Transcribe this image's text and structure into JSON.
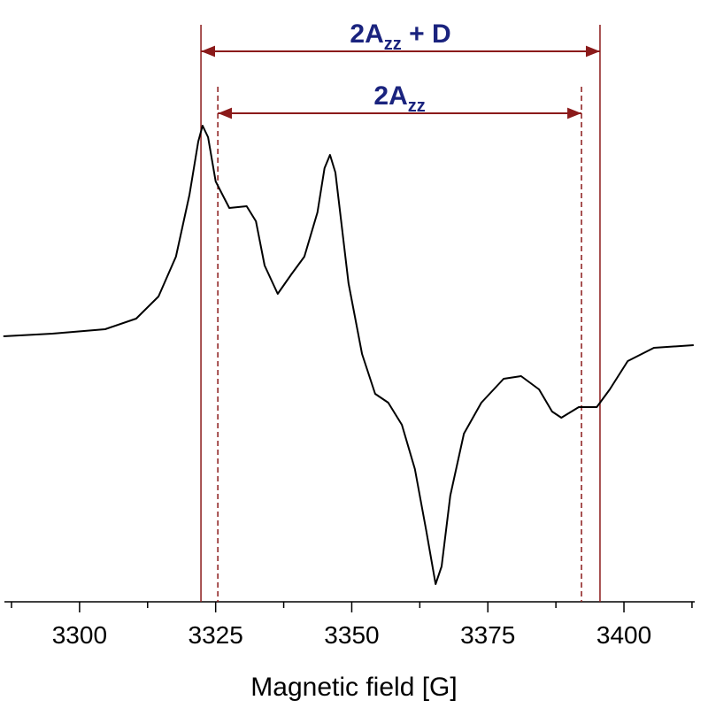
{
  "chart_data": {
    "type": "line",
    "x_label": "Magnetic field [G]",
    "xlim": [
      3286.2,
      3413.0
    ],
    "xticks": [
      3300,
      3325,
      3350,
      3375,
      3400
    ],
    "x_minor_ticks": [
      3287.5,
      3312.5,
      3337.5,
      3362.5,
      3387.5,
      3412.5
    ],
    "ylim": [
      -3.0,
      3.8
    ],
    "series": [
      {
        "color": "#000000",
        "x": [
          3286,
          3295,
          3304.7,
          3310.4,
          3314.5,
          3317.7,
          3320.2,
          3321.8,
          3322.6,
          3323.6,
          3325,
          3327.5,
          3330.7,
          3332.4,
          3334,
          3336.4,
          3338.9,
          3341.3,
          3343.7,
          3345,
          3346,
          3347,
          3349.4,
          3351.9,
          3354.3,
          3356.7,
          3359.2,
          3361.6,
          3363.7,
          3365.4,
          3366.5,
          3368.1,
          3370.6,
          3373.8,
          3377.9,
          3381.1,
          3384.4,
          3386.8,
          3388.5,
          3391.7,
          3395,
          3397.4,
          3400.7,
          3405.5,
          3412.8
        ],
        "values": [
          0,
          0.03,
          0.08,
          0.2,
          0.45,
          0.9,
          1.6,
          2.2,
          2.38,
          2.25,
          1.75,
          1.45,
          1.47,
          1.3,
          0.8,
          0.48,
          0.7,
          0.9,
          1.4,
          1.9,
          2.05,
          1.85,
          0.6,
          -0.2,
          -0.65,
          -0.75,
          -1.0,
          -1.5,
          -2.2,
          -2.8,
          -2.6,
          -1.8,
          -1.1,
          -0.75,
          -0.48,
          -0.45,
          -0.6,
          -0.85,
          -0.92,
          -0.8,
          -0.8,
          -0.6,
          -0.28,
          -0.13,
          -0.1
        ]
      }
    ],
    "annotations": [
      {
        "text": "2A",
        "sub": "zz",
        "after": " + D",
        "x1": 3322.3,
        "x2": 3395.6,
        "y": 3.22,
        "line_style": "solid",
        "color": "#8b1a1a",
        "label_color": "#1a237e"
      },
      {
        "text": "2A",
        "sub": "zz",
        "x1": 3325.4,
        "x2": 3392.2,
        "y": 2.52,
        "line_style": "dashed",
        "color": "#8b1a1a",
        "label_color": "#1a237e"
      }
    ]
  }
}
